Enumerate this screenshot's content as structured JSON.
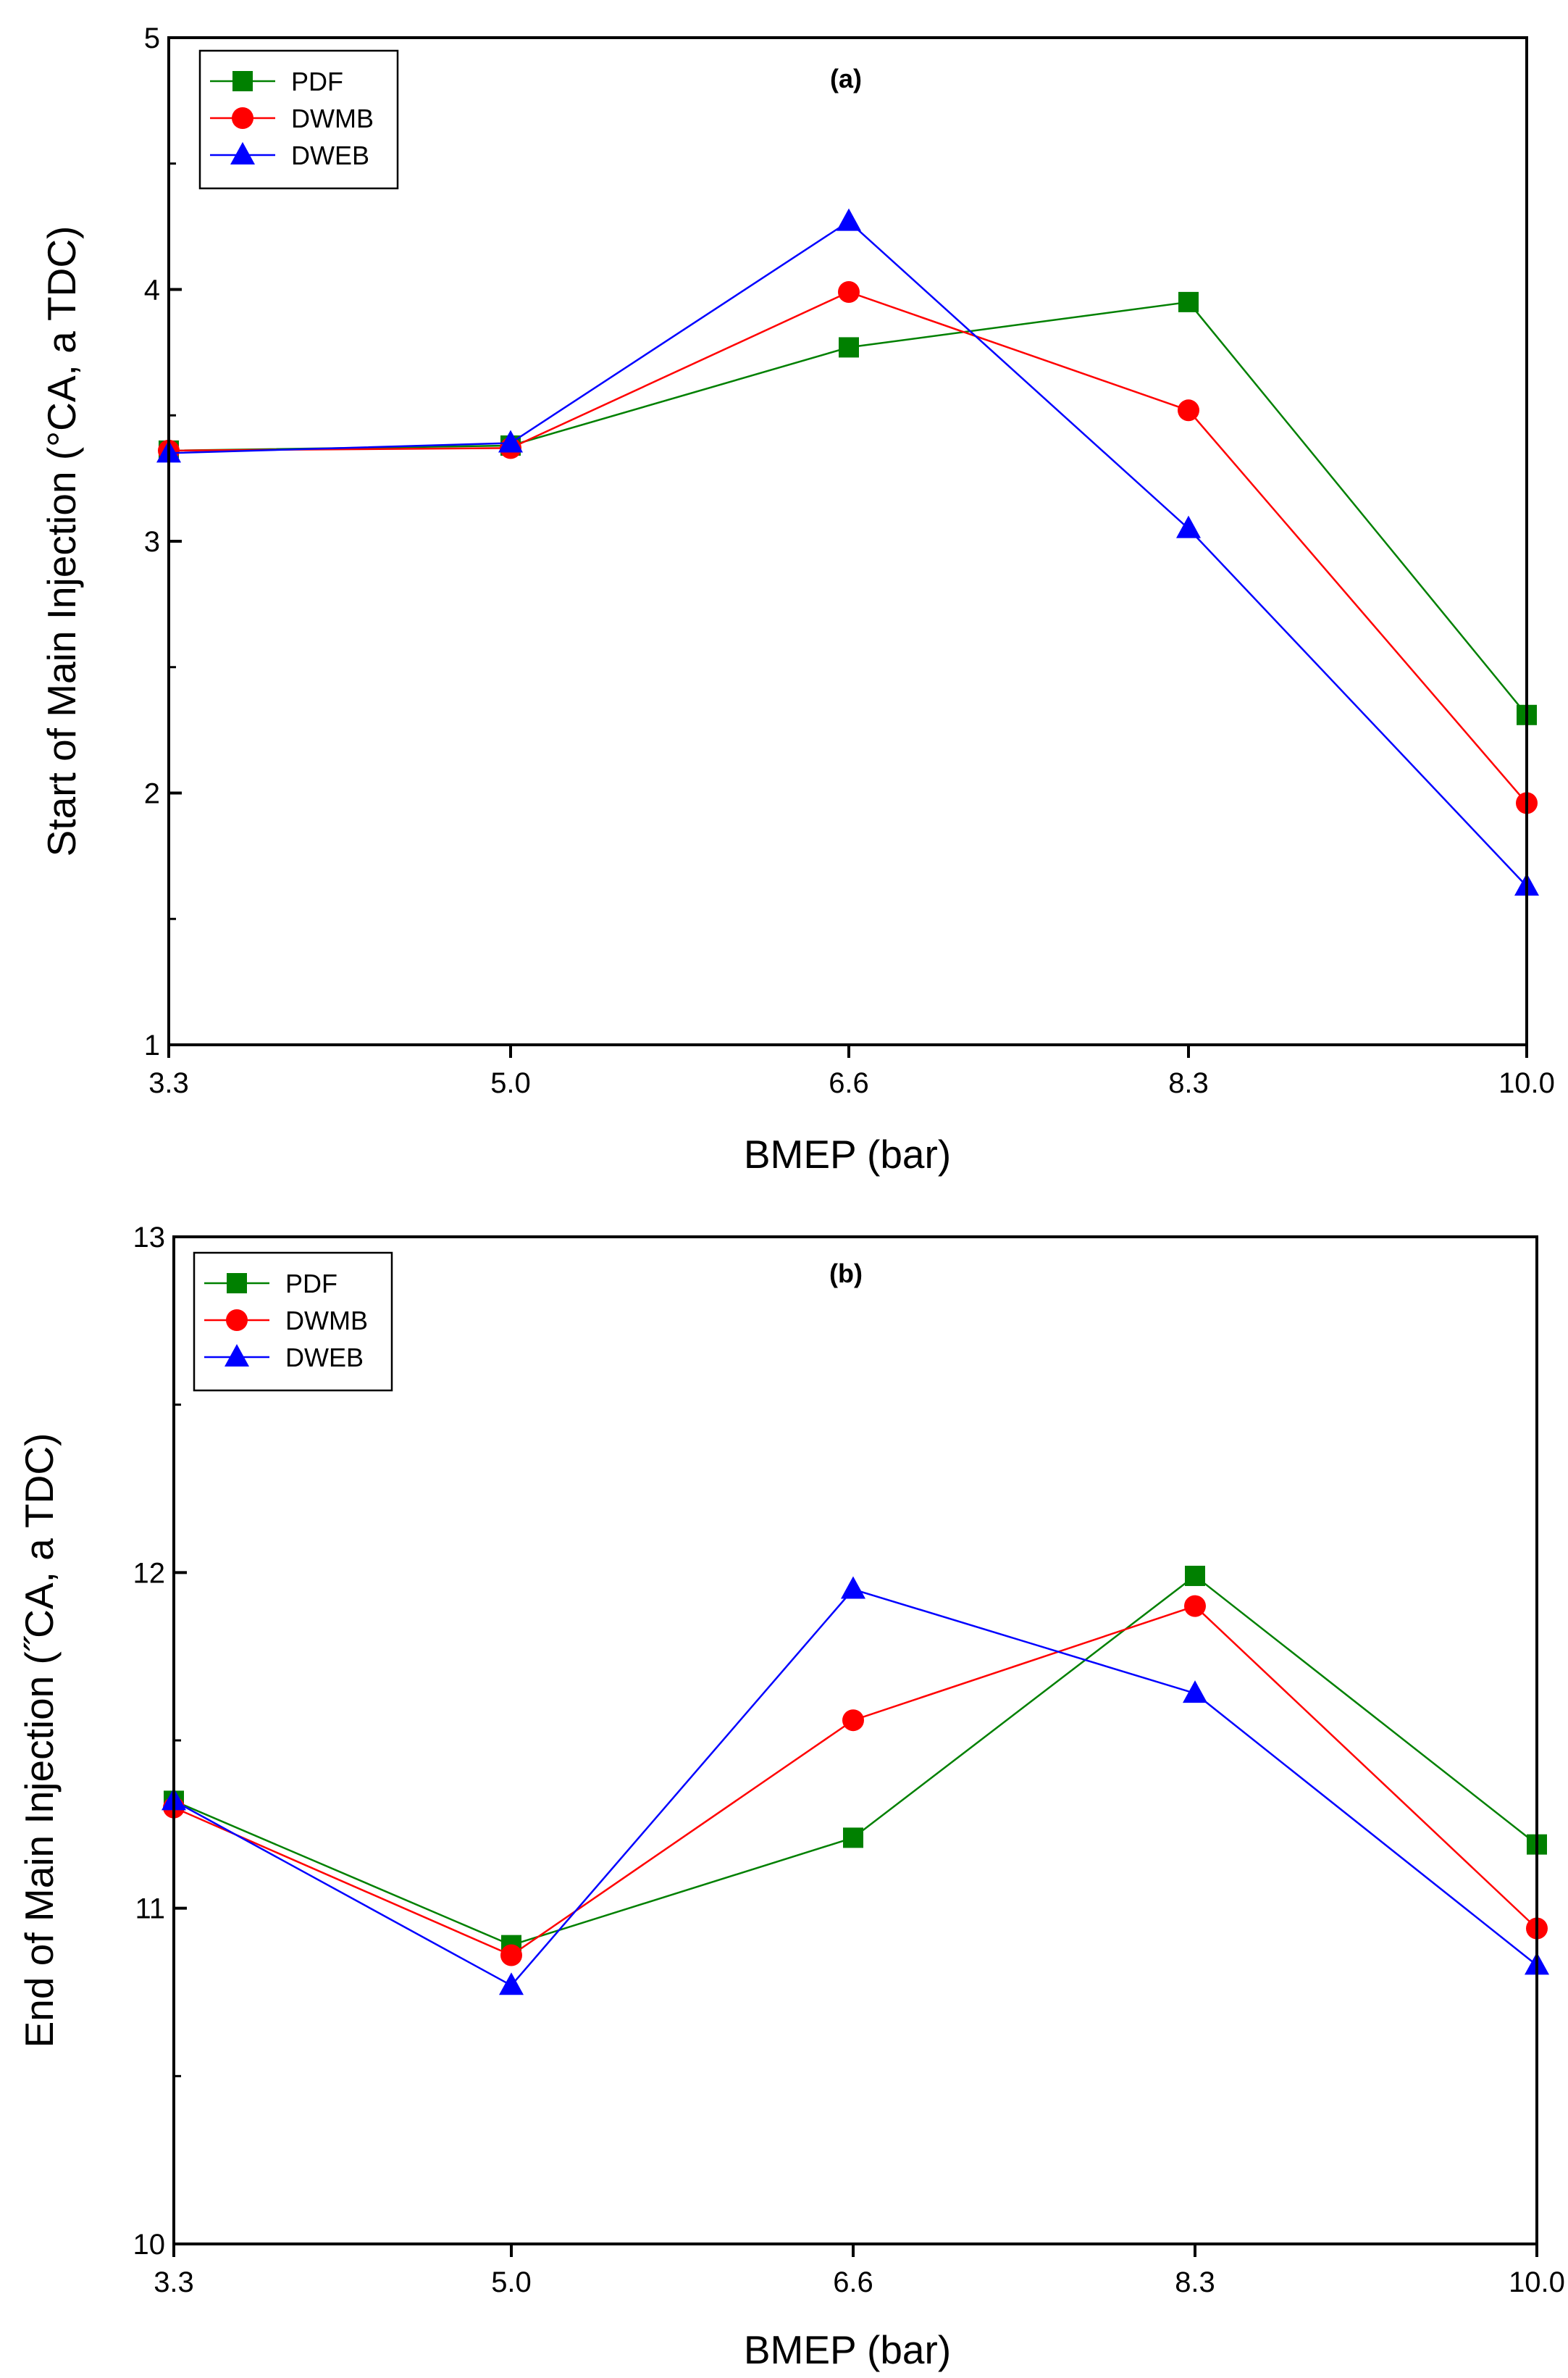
{
  "chart_data": [
    {
      "type": "line",
      "panel_label": "(a)",
      "xlabel": "BMEP (bar)",
      "ylabel": "Start of Main Injection (°CA, a TDC)",
      "categories": [
        "3.3",
        "5.0",
        "6.6",
        "8.3",
        "10.0"
      ],
      "ylim": [
        1,
        5
      ],
      "yticks": [
        "1",
        "2",
        "3",
        "4",
        "5"
      ],
      "legend_position": "top-left",
      "series": [
        {
          "name": "PDF",
          "marker": "square",
          "color": "#008000",
          "values": [
            3.36,
            3.38,
            3.77,
            3.95,
            2.31
          ]
        },
        {
          "name": "DWMB",
          "marker": "circle",
          "color": "#ff0000",
          "values": [
            3.36,
            3.37,
            3.99,
            3.52,
            1.96
          ]
        },
        {
          "name": "DWEB",
          "marker": "triangle",
          "color": "#0000ff",
          "values": [
            3.35,
            3.39,
            4.27,
            3.05,
            1.63
          ]
        }
      ]
    },
    {
      "type": "line",
      "panel_label": "(b)",
      "xlabel": "BMEP (bar)",
      "ylabel": "End of Main Injection (˝CA, a TDC)",
      "categories": [
        "3.3",
        "5.0",
        "6.6",
        "8.3",
        "10.0"
      ],
      "ylim": [
        10,
        13
      ],
      "yticks": [
        "10",
        "11",
        "12",
        "13"
      ],
      "legend_position": "top-left",
      "series": [
        {
          "name": "PDF",
          "marker": "square",
          "color": "#008000",
          "values": [
            11.32,
            10.89,
            11.21,
            11.99,
            11.19
          ]
        },
        {
          "name": "DWMB",
          "marker": "circle",
          "color": "#ff0000",
          "values": [
            11.3,
            10.86,
            11.56,
            11.9,
            10.94
          ]
        },
        {
          "name": "DWEB",
          "marker": "triangle",
          "color": "#0000ff",
          "values": [
            11.32,
            10.77,
            11.95,
            11.64,
            10.83
          ]
        }
      ]
    }
  ]
}
